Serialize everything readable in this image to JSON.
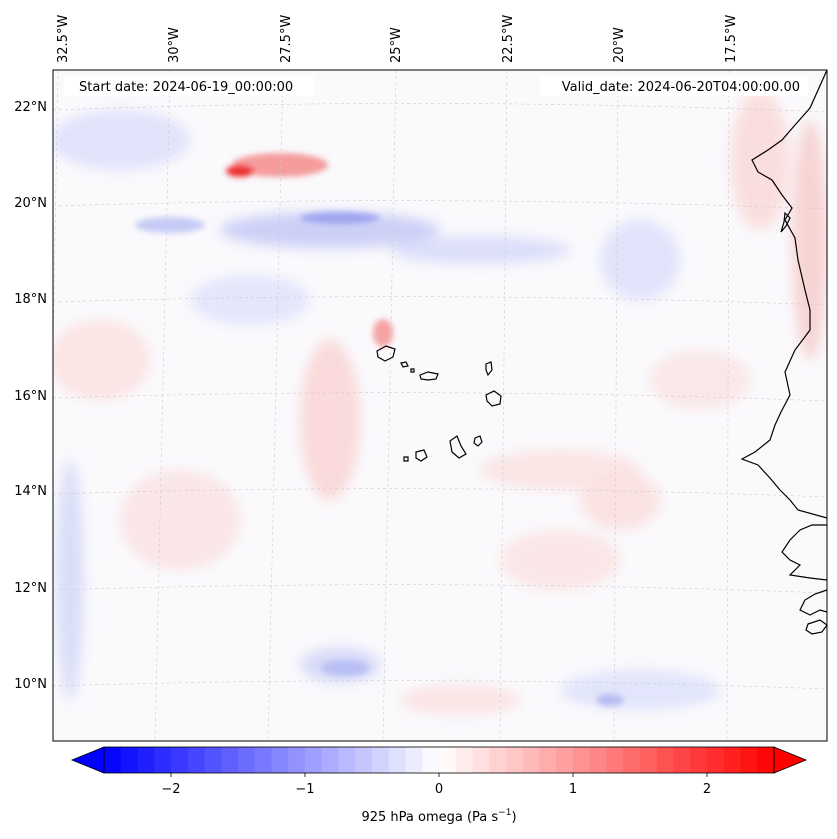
{
  "header": {
    "start_date": "Start date: 2024-06-19_00:00:00",
    "valid_date": "Valid_date: 2024-06-20T04:00:00.00"
  },
  "map": {
    "lon_labels": [
      "32.5°W",
      "30°W",
      "27.5°W",
      "25°W",
      "22.5°W",
      "20°W",
      "17.5°W"
    ],
    "lat_labels": [
      "22°N",
      "20°N",
      "18°N",
      "16°N",
      "14°N",
      "12°N",
      "10°N"
    ],
    "field": "925 hPa omega",
    "gridlines": true
  },
  "colorbar": {
    "ticks": [
      "−2",
      "−1",
      "0",
      "1",
      "2"
    ],
    "label": "925 hPa omega (Pa s",
    "label_sup": "−1",
    "label_end": ")",
    "range": [
      -2.6,
      2.6
    ],
    "colormap": "bwr",
    "low_color": "#0000ff",
    "mid_color": "#ffffff",
    "high_color": "#ff0000"
  }
}
